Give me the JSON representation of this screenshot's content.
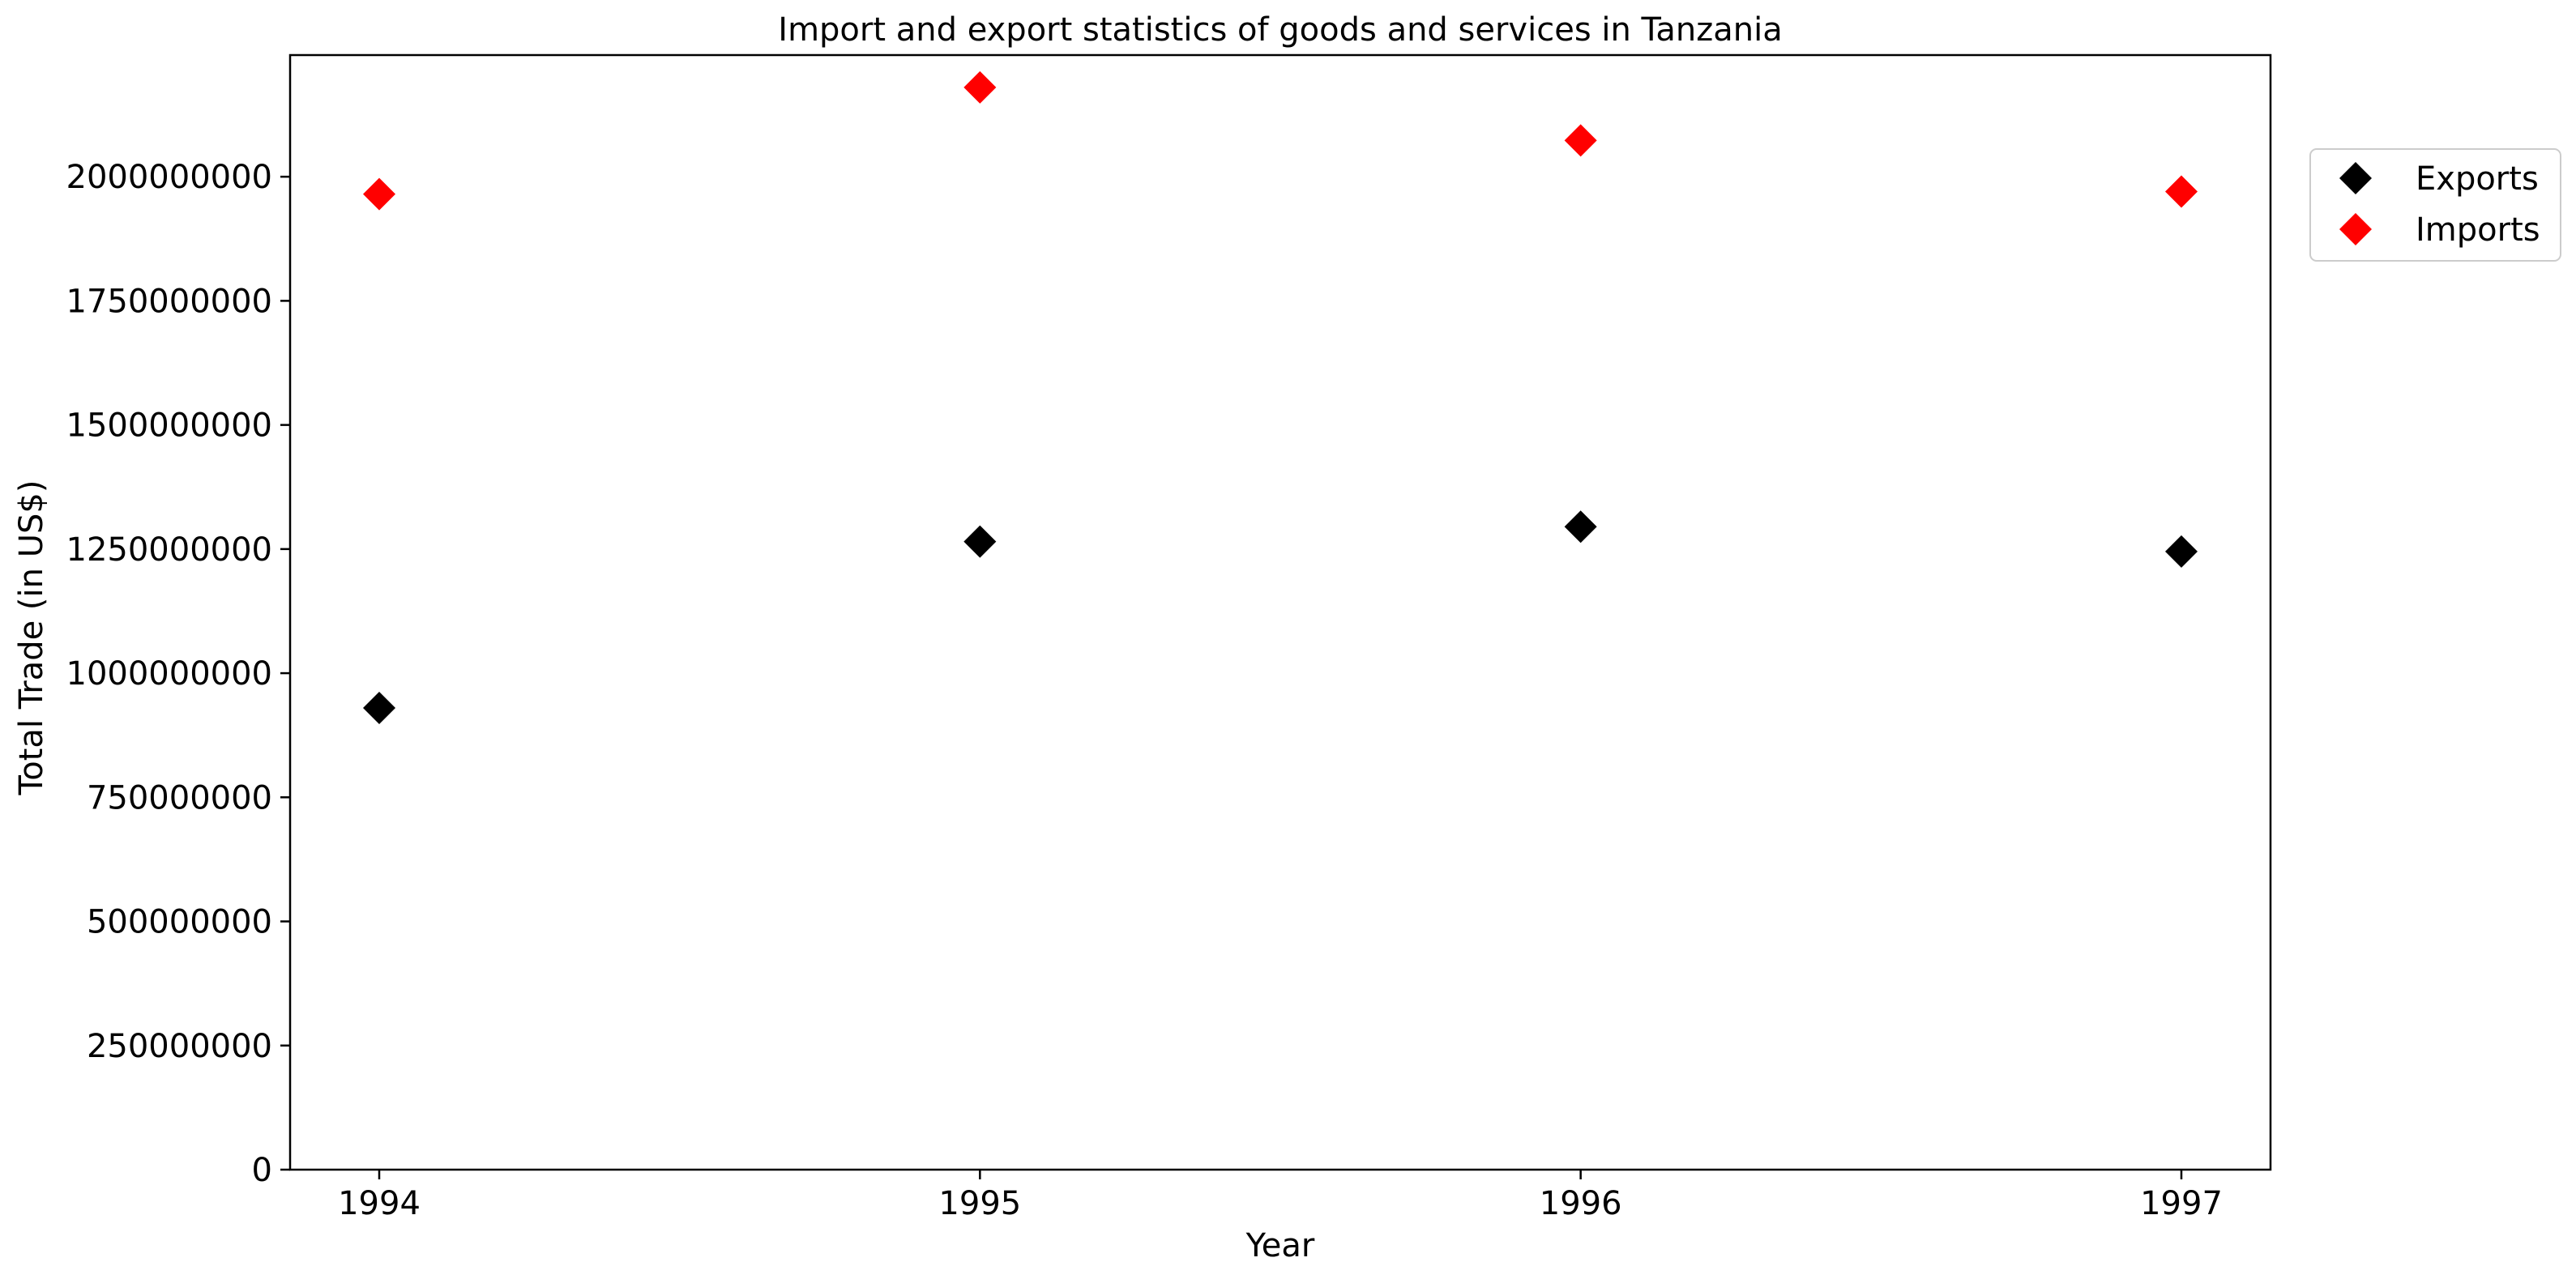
{
  "chart_data": {
    "type": "scatter",
    "title": "Import and export statistics of goods and services in Tanzania",
    "xlabel": "Year",
    "ylabel": "Total Trade (in US$)",
    "x": [
      "1994",
      "1995",
      "1996",
      "1997"
    ],
    "ylim": [
      0,
      2245000000
    ],
    "y_ticks": [
      0,
      250000000,
      500000000,
      750000000,
      1000000000,
      1250000000,
      1500000000,
      1750000000,
      2000000000
    ],
    "y_tick_labels": [
      "0",
      "250000000",
      "500000000",
      "750000000",
      "1000000000",
      "1250000000",
      "1500000000",
      "1750000000",
      "2000000000"
    ],
    "grid": false,
    "legend_position": "outside-top-right",
    "marker": "diamond",
    "series": [
      {
        "name": "Exports",
        "color": "#000000",
        "values": [
          930000000,
          1265000000,
          1295000000,
          1245000000
        ]
      },
      {
        "name": "Imports",
        "color": "#ff0000",
        "values": [
          1965000000,
          2180000000,
          2073000000,
          1970000000
        ]
      }
    ]
  }
}
